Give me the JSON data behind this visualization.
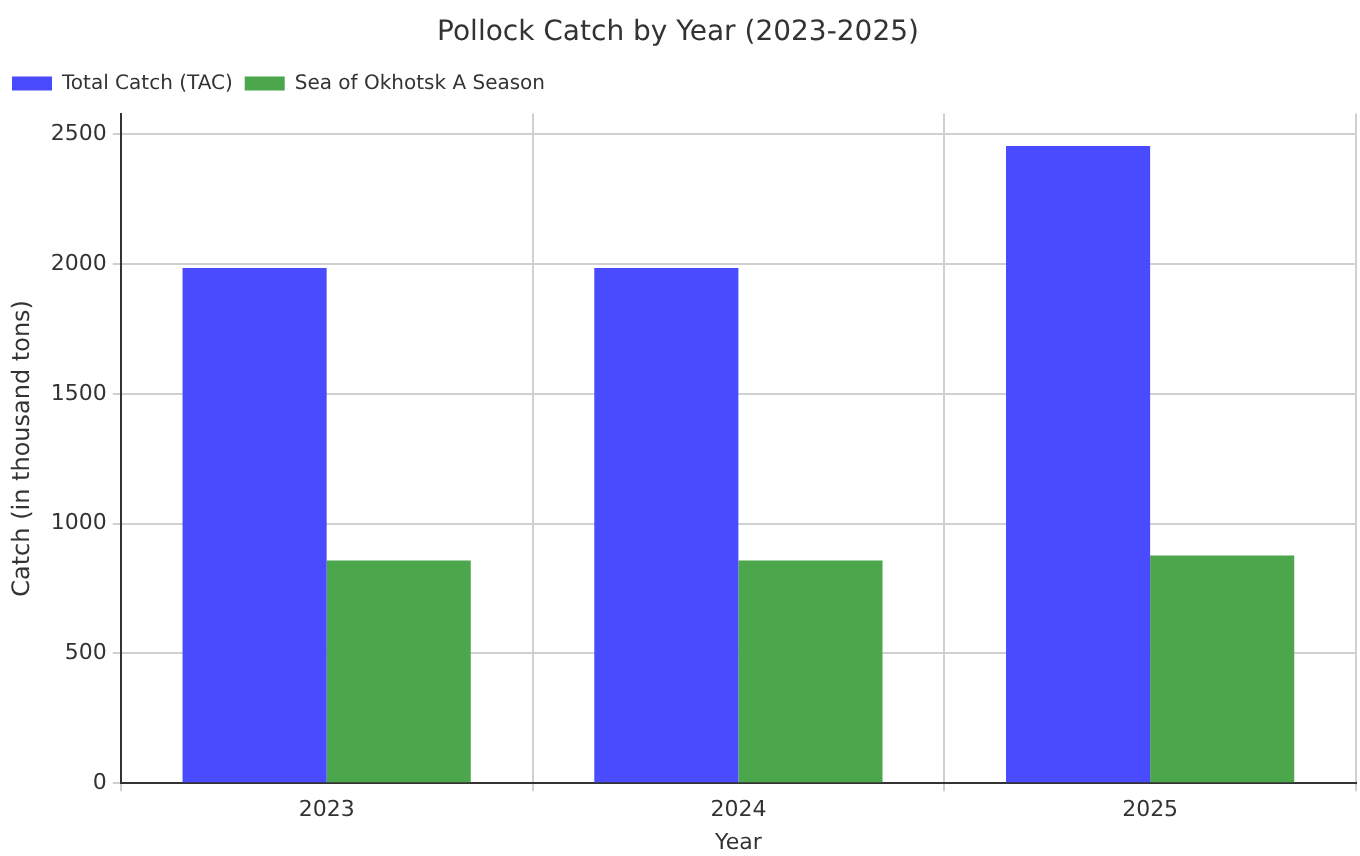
{
  "chart_data": {
    "type": "bar",
    "title": "Pollock Catch by Year (2023-2025)",
    "xlabel": "Year",
    "ylabel": "Catch (in thousand tons)",
    "categories": [
      "2023",
      "2024",
      "2025"
    ],
    "series": [
      {
        "name": "Total Catch (TAC)",
        "color": "#4a4aff",
        "values": [
          1985,
          1985,
          2455
        ]
      },
      {
        "name": "Sea of Okhotsk A Season",
        "color": "#4ca64c",
        "values": [
          858,
          858,
          877
        ]
      }
    ],
    "ylim": [
      0,
      2580
    ],
    "yticks": [
      0,
      500,
      1000,
      1500,
      2000,
      2500
    ],
    "grid": true,
    "legend": "top left"
  }
}
